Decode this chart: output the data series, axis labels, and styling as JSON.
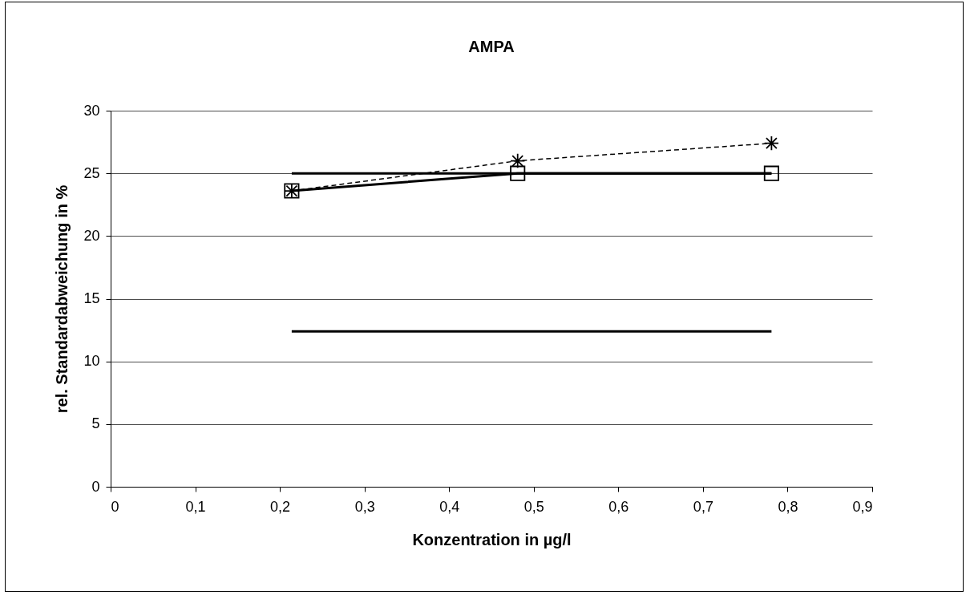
{
  "chart_data": {
    "type": "line",
    "title": "AMPA",
    "xlabel": "Konzentration in µg/l",
    "ylabel": "rel. Standardabweichung in %",
    "x": [
      0.214,
      0.481,
      0.781
    ],
    "series": [
      {
        "color": "#000000",
        "values": [
          23.6,
          25,
          25
        ],
        "marker": "square",
        "line_style": "solid"
      },
      {
        "color": "#000000",
        "values": [
          23.6,
          26.0,
          27.4
        ],
        "marker": "cross",
        "line_style": "dashed"
      },
      {
        "color": "#000000",
        "values": [
          25,
          25,
          25
        ],
        "marker": "none",
        "line_style": "solid"
      },
      {
        "color": "#000000",
        "values": [
          12.4,
          12.4,
          12.4
        ],
        "marker": "none",
        "line_style": "solid"
      }
    ],
    "xlim": [
      0,
      0.9
    ],
    "xticks": [
      0,
      {
        "value": 0.1,
        "label": "0,1"
      },
      {
        "value": 0.2,
        "label": "0,2"
      },
      {
        "value": 0.3,
        "label": "0,3"
      },
      {
        "value": 0.4,
        "label": "0,4"
      },
      {
        "value": 0.5,
        "label": "0,5"
      },
      {
        "value": 0.6,
        "label": "0,6"
      },
      {
        "value": 0.7,
        "label": "0,7"
      },
      {
        "value": 0.8,
        "label": "0,8"
      },
      {
        "value": 0.9,
        "label": "0,9"
      }
    ],
    "ylim": [
      0,
      30
    ],
    "yticks": [
      0,
      5,
      10,
      15,
      20,
      25,
      30
    ],
    "grid": "y"
  }
}
